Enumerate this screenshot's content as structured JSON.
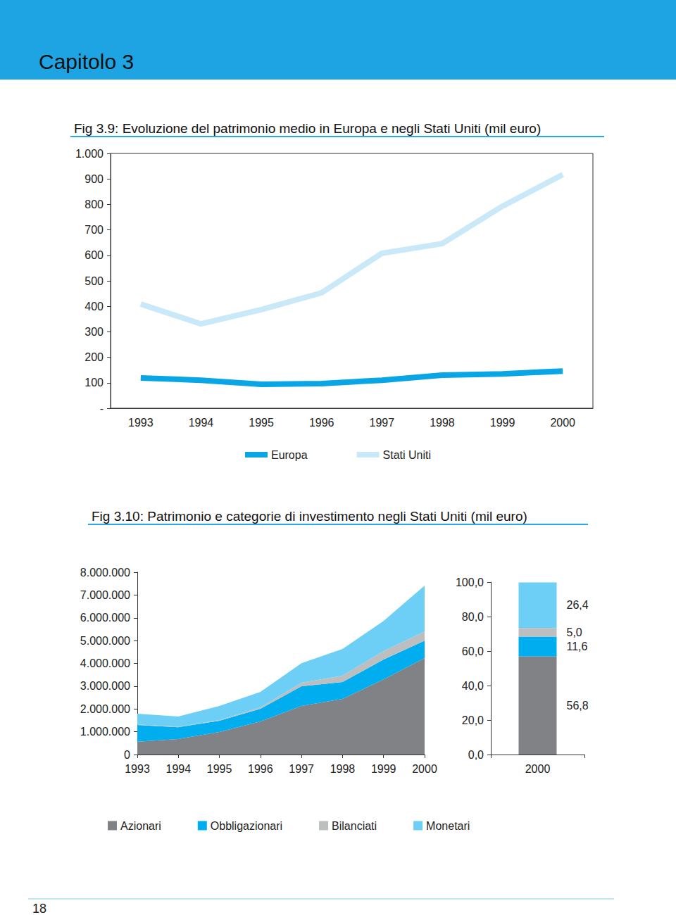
{
  "page": {
    "header": "Capitolo 3",
    "page_number": "18"
  },
  "chart_data": [
    {
      "type": "line",
      "title": "Fig 3.9: Evoluzione del patrimonio medio in Europa e negli Stati Uniti (mil euro)",
      "categories": [
        "1993",
        "1994",
        "1995",
        "1996",
        "1997",
        "1998",
        "1999",
        "2000"
      ],
      "series": [
        {
          "name": "Europa",
          "color": "#0aa5e4",
          "values": [
            119,
            110,
            94,
            97,
            110,
            130,
            135,
            146
          ]
        },
        {
          "name": "Stati Uniti",
          "color": "#c9e9f9",
          "values": [
            409,
            331,
            387,
            453,
            608,
            646,
            793,
            917
          ]
        }
      ],
      "ylim": [
        0,
        1000
      ],
      "yticks": [
        {
          "value": 0,
          "label": "-"
        },
        100,
        200,
        300,
        400,
        500,
        600,
        700,
        800,
        900,
        {
          "value": 1000,
          "label": "1.000"
        }
      ],
      "grid": false,
      "legend": "bottom"
    },
    {
      "type": "area",
      "title": "Fig 3.10: Patrimonio e categorie di investimento negli Stati Uniti (mil euro)",
      "categories": [
        "1993",
        "1994",
        "1995",
        "1996",
        "1997",
        "1998",
        "1999",
        "2000"
      ],
      "series": [
        {
          "name": "Azionari",
          "color": "#808285",
          "values": [
            560000,
            680000,
            990000,
            1450000,
            2130000,
            2440000,
            3300000,
            4230000
          ]
        },
        {
          "name": "Obbligazionari",
          "color": "#00aeef",
          "values": [
            740000,
            520000,
            490000,
            560000,
            870000,
            740000,
            870000,
            770000
          ]
        },
        {
          "name": "Bilanciati",
          "color": "#bcbec0",
          "values": [
            20000,
            20000,
            30000,
            60000,
            150000,
            280000,
            370000,
            400000
          ]
        },
        {
          "name": "Monetari",
          "color": "#6dcff6",
          "values": [
            470000,
            450000,
            620000,
            680000,
            860000,
            1170000,
            1320000,
            2010000
          ]
        }
      ],
      "ylim": [
        0,
        8000000
      ],
      "yticks": [
        0,
        {
          "value": 1000000,
          "label": "1.000.000"
        },
        {
          "value": 2000000,
          "label": "2.000.000"
        },
        {
          "value": 3000000,
          "label": "3.000.000"
        },
        {
          "value": 4000000,
          "label": "4.000.000"
        },
        {
          "value": 5000000,
          "label": "5.000.000"
        },
        {
          "value": 6000000,
          "label": "6.000.000"
        },
        {
          "value": 7000000,
          "label": "7.000.000"
        },
        {
          "value": 8000000,
          "label": "8.000.000"
        }
      ],
      "stacked": true,
      "grid": false,
      "legend": "bottom"
    },
    {
      "type": "bar",
      "categories": [
        "2000"
      ],
      "series": [
        {
          "name": "Azionari",
          "color": "#808285",
          "values": [
            56.8
          ],
          "value_labels": [
            "56,8"
          ]
        },
        {
          "name": "Obbligazionari",
          "color": "#00aeef",
          "values": [
            11.6
          ],
          "value_labels": [
            "11,6"
          ]
        },
        {
          "name": "Bilanciati",
          "color": "#bcbec0",
          "values": [
            5.0
          ],
          "value_labels": [
            "5,0"
          ]
        },
        {
          "name": "Monetari",
          "color": "#6dcff6",
          "values": [
            26.4
          ],
          "value_labels": [
            "26,4"
          ]
        }
      ],
      "ylim": [
        0,
        100
      ],
      "yticks": [
        {
          "value": 0,
          "label": "0,0"
        },
        {
          "value": 20,
          "label": "20,0"
        },
        {
          "value": 40,
          "label": "40,0"
        },
        {
          "value": 60,
          "label": "60,0"
        },
        {
          "value": 80,
          "label": "80,0"
        },
        {
          "value": 100,
          "label": "100,0"
        }
      ],
      "stacked": true,
      "data_labels": true,
      "grid": false
    }
  ]
}
